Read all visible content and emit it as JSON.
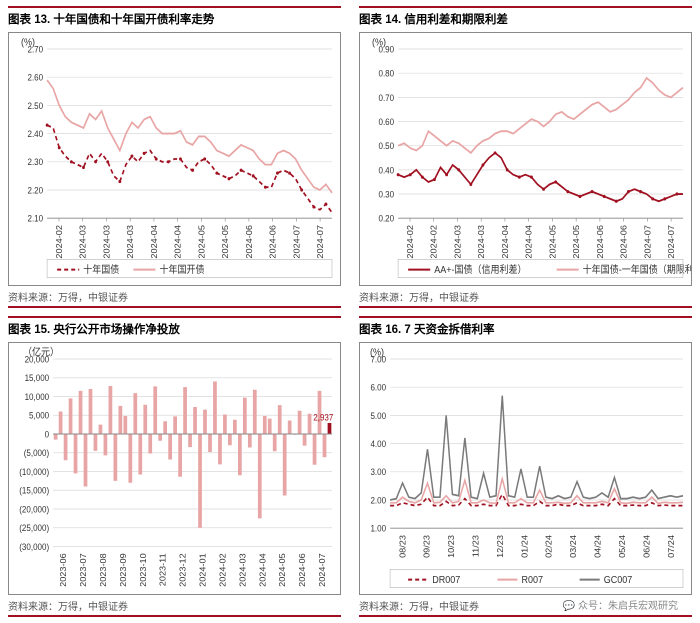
{
  "source_text": "资料来源：万得，中银证券",
  "watermark": "💬 众号：朱启兵宏观研究",
  "chart13": {
    "type": "line",
    "title": "图表 13. 十年国债和十年国开债利率走势",
    "y_unit": "(%)",
    "ylim": [
      2.1,
      2.7
    ],
    "ytick_step": 0.1,
    "x_labels": [
      "2024-02",
      "2024-03",
      "2024-03",
      "2024-03",
      "2024-04",
      "2024-04",
      "2024-05",
      "2024-05",
      "2024-06",
      "2024-06",
      "2024-07",
      "2024-07"
    ],
    "grid_color": "#d9d9d9",
    "border_color": "#888888",
    "series": [
      {
        "name": "十年国债",
        "color": "#a01020",
        "dash": "4,3",
        "width": 1.6,
        "markers": true,
        "values": [
          2.43,
          2.42,
          2.35,
          2.32,
          2.3,
          2.29,
          2.28,
          2.33,
          2.3,
          2.33,
          2.3,
          2.25,
          2.23,
          2.29,
          2.32,
          2.3,
          2.33,
          2.34,
          2.31,
          2.3,
          2.3,
          2.31,
          2.31,
          2.28,
          2.27,
          2.3,
          2.31,
          2.29,
          2.26,
          2.25,
          2.24,
          2.25,
          2.27,
          2.26,
          2.25,
          2.23,
          2.21,
          2.21,
          2.26,
          2.27,
          2.26,
          2.24,
          2.2,
          2.17,
          2.14,
          2.13,
          2.15,
          2.12
        ]
      },
      {
        "name": "十年国开债",
        "color": "#e8a5a5",
        "dash": null,
        "width": 1.6,
        "markers": false,
        "values": [
          2.59,
          2.56,
          2.5,
          2.46,
          2.44,
          2.43,
          2.42,
          2.47,
          2.45,
          2.48,
          2.42,
          2.38,
          2.34,
          2.4,
          2.44,
          2.42,
          2.45,
          2.46,
          2.42,
          2.4,
          2.4,
          2.4,
          2.41,
          2.37,
          2.36,
          2.39,
          2.39,
          2.37,
          2.34,
          2.33,
          2.32,
          2.34,
          2.36,
          2.35,
          2.34,
          2.31,
          2.29,
          2.29,
          2.33,
          2.34,
          2.33,
          2.31,
          2.27,
          2.24,
          2.21,
          2.2,
          2.22,
          2.19
        ]
      }
    ]
  },
  "chart14": {
    "type": "line",
    "title": "图表 14. 信用利差和期限利差",
    "y_unit": "(%)",
    "ylim": [
      0.2,
      0.9
    ],
    "ytick_step": 0.1,
    "x_labels": [
      "2024-02",
      "2024-02",
      "2024-03",
      "2024-03",
      "2024-04",
      "2024-04",
      "2024-05",
      "2024-05",
      "2024-06",
      "2024-06",
      "2024-07",
      "2024-07"
    ],
    "grid_color": "#d9d9d9",
    "series": [
      {
        "name": "AA+-国债（信用利差）",
        "color": "#a01020",
        "dash": null,
        "width": 1.6,
        "markers": true,
        "values": [
          0.38,
          0.37,
          0.38,
          0.4,
          0.37,
          0.35,
          0.36,
          0.41,
          0.38,
          0.42,
          0.4,
          0.37,
          0.34,
          0.38,
          0.42,
          0.45,
          0.47,
          0.45,
          0.4,
          0.38,
          0.37,
          0.38,
          0.37,
          0.34,
          0.32,
          0.34,
          0.35,
          0.33,
          0.31,
          0.3,
          0.29,
          0.3,
          0.31,
          0.3,
          0.29,
          0.28,
          0.27,
          0.28,
          0.31,
          0.32,
          0.31,
          0.3,
          0.28,
          0.27,
          0.28,
          0.29,
          0.3,
          0.3
        ]
      },
      {
        "name": "十年国债-一年国债（期限利差）",
        "color": "#e8a5a5",
        "dash": null,
        "width": 1.6,
        "markers": false,
        "values": [
          0.5,
          0.51,
          0.49,
          0.48,
          0.5,
          0.56,
          0.54,
          0.52,
          0.5,
          0.52,
          0.51,
          0.49,
          0.47,
          0.5,
          0.52,
          0.53,
          0.55,
          0.56,
          0.56,
          0.55,
          0.57,
          0.59,
          0.61,
          0.6,
          0.58,
          0.6,
          0.63,
          0.64,
          0.62,
          0.61,
          0.63,
          0.65,
          0.67,
          0.68,
          0.66,
          0.64,
          0.65,
          0.67,
          0.69,
          0.72,
          0.74,
          0.78,
          0.76,
          0.73,
          0.71,
          0.7,
          0.72,
          0.74
        ]
      }
    ]
  },
  "chart15": {
    "type": "bar",
    "title": "图表 15. 央行公开市场操作净投放",
    "y_unit": "（亿元）",
    "ylim": [
      -30000,
      20000
    ],
    "yticks": [
      20000,
      15000,
      10000,
      5000,
      0,
      -5000,
      -10000,
      -15000,
      -20000,
      -25000,
      -30000
    ],
    "ytick_labels_neg_paren": true,
    "x_labels": [
      "2023-06",
      "2023-07",
      "2023-08",
      "2023-09",
      "2023-10",
      "2023-11",
      "2023-12",
      "2024-01",
      "2024-02",
      "2024-03",
      "2024-04",
      "2024-05",
      "2024-06",
      "2024-07"
    ],
    "grid_color": "#d9d9d9",
    "bar_color_pos": "#e8a5a5",
    "bar_color_last_pos": "#a01020",
    "last_label": "2,937",
    "values": [
      -1500,
      6000,
      -7000,
      9500,
      -10500,
      11500,
      -14000,
      12000,
      -4500,
      2500,
      -5700,
      12800,
      -12500,
      7500,
      4800,
      -13000,
      10900,
      -10800,
      7800,
      -5200,
      12700,
      -1800,
      3400,
      -6800,
      4700,
      -11400,
      12500,
      -3500,
      7200,
      -25000,
      6500,
      -4800,
      14000,
      -8100,
      5200,
      -3000,
      3800,
      -11000,
      9700,
      -3600,
      11800,
      -22500,
      4800,
      4100,
      -4600,
      7700,
      -16400,
      3600,
      -200,
      6200,
      -3100,
      5400,
      -8200,
      11500,
      -6200,
      2937
    ]
  },
  "chart16": {
    "type": "line",
    "title": "图表 16. 7 天资金拆借利率",
    "y_unit": "(%)",
    "ylim": [
      1.0,
      7.0
    ],
    "ytick_step": 1.0,
    "x_labels": [
      "08/23",
      "09/23",
      "10/23",
      "11/23",
      "12/23",
      "01/24",
      "02/24",
      "03/24",
      "04/24",
      "05/24",
      "06/24",
      "07/24"
    ],
    "grid_color": "#d9d9d9",
    "series": [
      {
        "name": "DR007",
        "color": "#a01020",
        "dash": "4,3",
        "width": 1.5,
        "markers": false,
        "values": [
          1.8,
          1.8,
          1.9,
          1.85,
          1.8,
          1.85,
          2.1,
          1.8,
          1.8,
          1.95,
          1.8,
          1.82,
          2.05,
          1.8,
          1.8,
          1.85,
          1.8,
          1.8,
          2.2,
          1.8,
          1.8,
          1.85,
          1.8,
          1.8,
          1.95,
          1.8,
          1.8,
          1.85,
          1.8,
          1.8,
          1.9,
          1.8,
          1.8,
          1.8,
          1.85,
          1.8,
          2.05,
          1.8,
          1.8,
          1.82,
          1.8,
          1.8,
          1.9,
          1.8,
          1.82,
          1.8,
          1.8,
          1.8
        ]
      },
      {
        "name": "R007",
        "color": "#e8a5a5",
        "dash": null,
        "width": 1.5,
        "markers": false,
        "values": [
          1.9,
          1.9,
          2.1,
          1.95,
          1.9,
          2.0,
          2.6,
          1.9,
          1.92,
          2.15,
          1.9,
          1.95,
          2.7,
          1.9,
          1.9,
          2.0,
          1.9,
          1.88,
          2.75,
          1.9,
          1.9,
          2.05,
          1.9,
          1.9,
          2.35,
          1.9,
          1.9,
          1.92,
          1.88,
          1.9,
          2.15,
          1.9,
          1.9,
          1.9,
          1.95,
          1.9,
          2.4,
          1.9,
          1.88,
          1.92,
          1.9,
          1.9,
          2.1,
          1.88,
          1.92,
          1.9,
          1.9,
          1.92
        ]
      },
      {
        "name": "GC007",
        "color": "#7a7a7a",
        "dash": null,
        "width": 1.5,
        "markers": false,
        "values": [
          2.0,
          2.05,
          2.6,
          2.1,
          2.05,
          2.25,
          3.8,
          2.1,
          2.1,
          5.0,
          2.2,
          2.15,
          4.2,
          2.1,
          2.05,
          2.95,
          2.1,
          2.15,
          5.7,
          2.15,
          2.1,
          3.1,
          2.1,
          2.1,
          3.2,
          2.1,
          2.05,
          2.15,
          2.05,
          2.1,
          2.65,
          2.1,
          2.05,
          2.1,
          2.25,
          2.1,
          2.8,
          2.05,
          2.05,
          2.1,
          2.05,
          2.1,
          2.35,
          2.05,
          2.1,
          2.15,
          2.1,
          2.15
        ]
      }
    ]
  }
}
